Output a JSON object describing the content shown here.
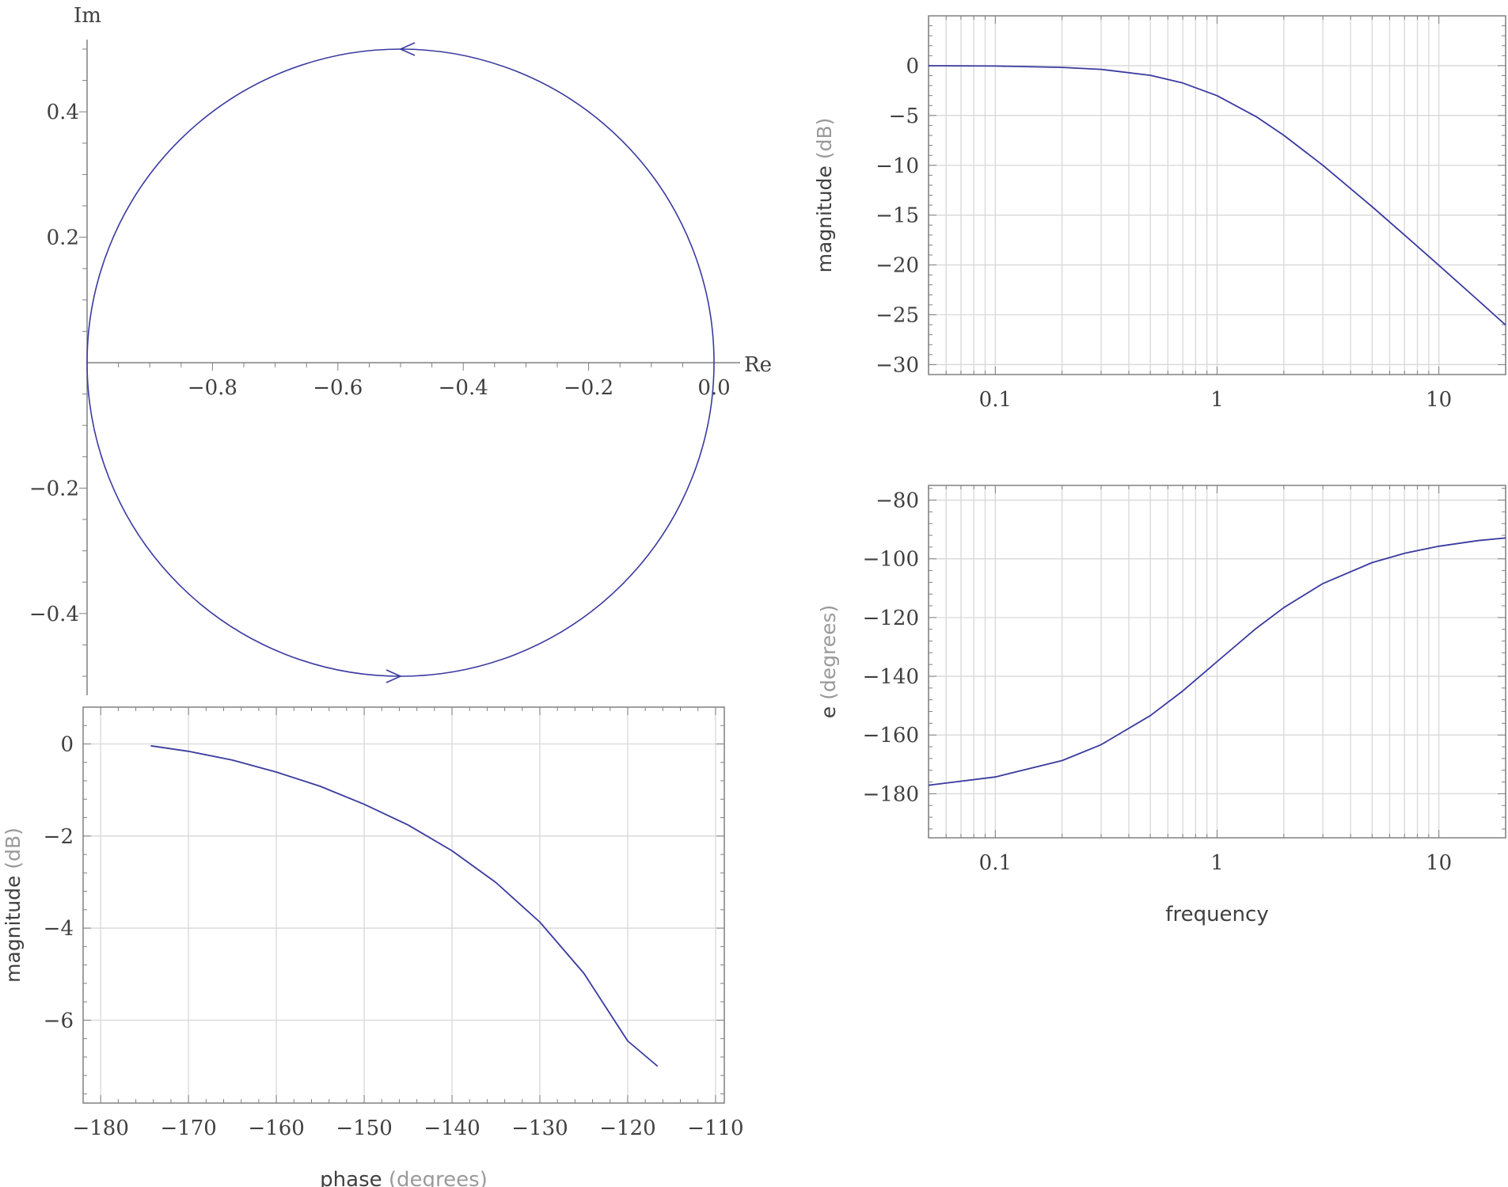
{
  "colors": {
    "curve": "#3a3aa0",
    "axis": "#808080",
    "grid": "#d8d8d8",
    "text": "#404040",
    "muted": "#9a9a9a"
  },
  "chart_data": [
    {
      "id": "nyquist",
      "type": "line",
      "xlabel": "Re",
      "ylabel": "Im",
      "xlim": [
        -1.0,
        0.0
      ],
      "ylim": [
        -0.5,
        0.5
      ],
      "xticks": [
        -0.8,
        -0.6,
        -0.4,
        -0.2,
        0.0
      ],
      "xtick_labels": [
        "−0.8",
        "−0.6",
        "−0.4",
        "−0.2",
        "0.0"
      ],
      "yticks": [
        0.4,
        0.2,
        -0.2,
        -0.4
      ],
      "ytick_labels": [
        "0.4",
        "0.2",
        "−0.2",
        "−0.4"
      ],
      "grid": false,
      "series": [
        {
          "shape": "circle",
          "center": [
            -0.5,
            0
          ],
          "radius": 0.5
        }
      ],
      "arrows": [
        {
          "x": -0.5,
          "y": 0.5,
          "direction": "left"
        },
        {
          "x": -0.5,
          "y": -0.5,
          "direction": "right"
        }
      ]
    },
    {
      "id": "bode-magnitude",
      "type": "line",
      "xscale": "log",
      "xlim": [
        0.05,
        20
      ],
      "ylim": [
        -31,
        5
      ],
      "xlabel": "",
      "ylabel": {
        "main": "magnitude",
        "unit": "(dB)"
      },
      "xticks": [
        0.1,
        1,
        10
      ],
      "xtick_labels": [
        "0.1",
        "1",
        "10"
      ],
      "yticks": [
        0,
        -5,
        -10,
        -15,
        -20,
        -25,
        -30
      ],
      "ytick_labels": [
        "0",
        "−5",
        "−10",
        "−15",
        "−20",
        "−25",
        "−30"
      ],
      "grid": true,
      "series": [
        {
          "x": [
            0.05,
            0.1,
            0.2,
            0.3,
            0.5,
            0.7,
            1,
            1.5,
            2,
            3,
            5,
            7,
            10,
            15,
            20
          ],
          "y": [
            -0.01,
            -0.04,
            -0.17,
            -0.37,
            -0.97,
            -1.74,
            -3.01,
            -5.12,
            -6.99,
            -10.0,
            -14.15,
            -17.0,
            -20.04,
            -23.53,
            -26.03
          ]
        }
      ]
    },
    {
      "id": "bode-phase",
      "type": "line",
      "xscale": "log",
      "xlim": [
        0.05,
        20
      ],
      "ylim": [
        -195,
        -75
      ],
      "xlabel": "frequency",
      "ylabel": {
        "main": "e",
        "unit": "(degrees)"
      },
      "xticks": [
        0.1,
        1,
        10
      ],
      "xtick_labels": [
        "0.1",
        "1",
        "10"
      ],
      "yticks": [
        -80,
        -100,
        -120,
        -140,
        -160,
        -180
      ],
      "ytick_labels": [
        "−80",
        "−100",
        "−120",
        "−140",
        "−160",
        "−180"
      ],
      "grid": true,
      "series": [
        {
          "x": [
            0.05,
            0.1,
            0.2,
            0.3,
            0.5,
            0.7,
            1,
            1.5,
            2,
            3,
            5,
            7,
            10,
            15,
            20
          ],
          "y": [
            -177.1,
            -174.3,
            -168.7,
            -163.3,
            -153.4,
            -145.0,
            -135.0,
            -123.7,
            -116.6,
            -108.4,
            -101.3,
            -98.1,
            -95.7,
            -93.8,
            -92.9
          ]
        }
      ]
    },
    {
      "id": "nichols",
      "type": "line",
      "xlim": [
        -182,
        -109
      ],
      "ylim": [
        -7.8,
        0.8
      ],
      "xlabel": {
        "main": "phase",
        "unit": "(degrees)"
      },
      "ylabel": {
        "main": "magnitude",
        "unit": "(dB)"
      },
      "xticks": [
        -180,
        -170,
        -160,
        -150,
        -140,
        -130,
        -120,
        -110
      ],
      "xtick_labels": [
        "−180",
        "−170",
        "−160",
        "−150",
        "−140",
        "−130",
        "−120",
        "−110"
      ],
      "yticks": [
        0,
        -2,
        -4,
        -6
      ],
      "ytick_labels": [
        "0",
        "−2",
        "−4",
        "−6"
      ],
      "grid": true,
      "series": [
        {
          "x": [
            -174.3,
            -170,
            -165,
            -160,
            -155,
            -150,
            -145,
            -140,
            -135,
            -130,
            -125,
            -120,
            -116.6
          ],
          "y": [
            -0.04,
            -0.16,
            -0.35,
            -0.61,
            -0.92,
            -1.31,
            -1.76,
            -2.32,
            -3.01,
            -3.87,
            -4.98,
            -6.45,
            -7.0
          ]
        }
      ]
    }
  ]
}
